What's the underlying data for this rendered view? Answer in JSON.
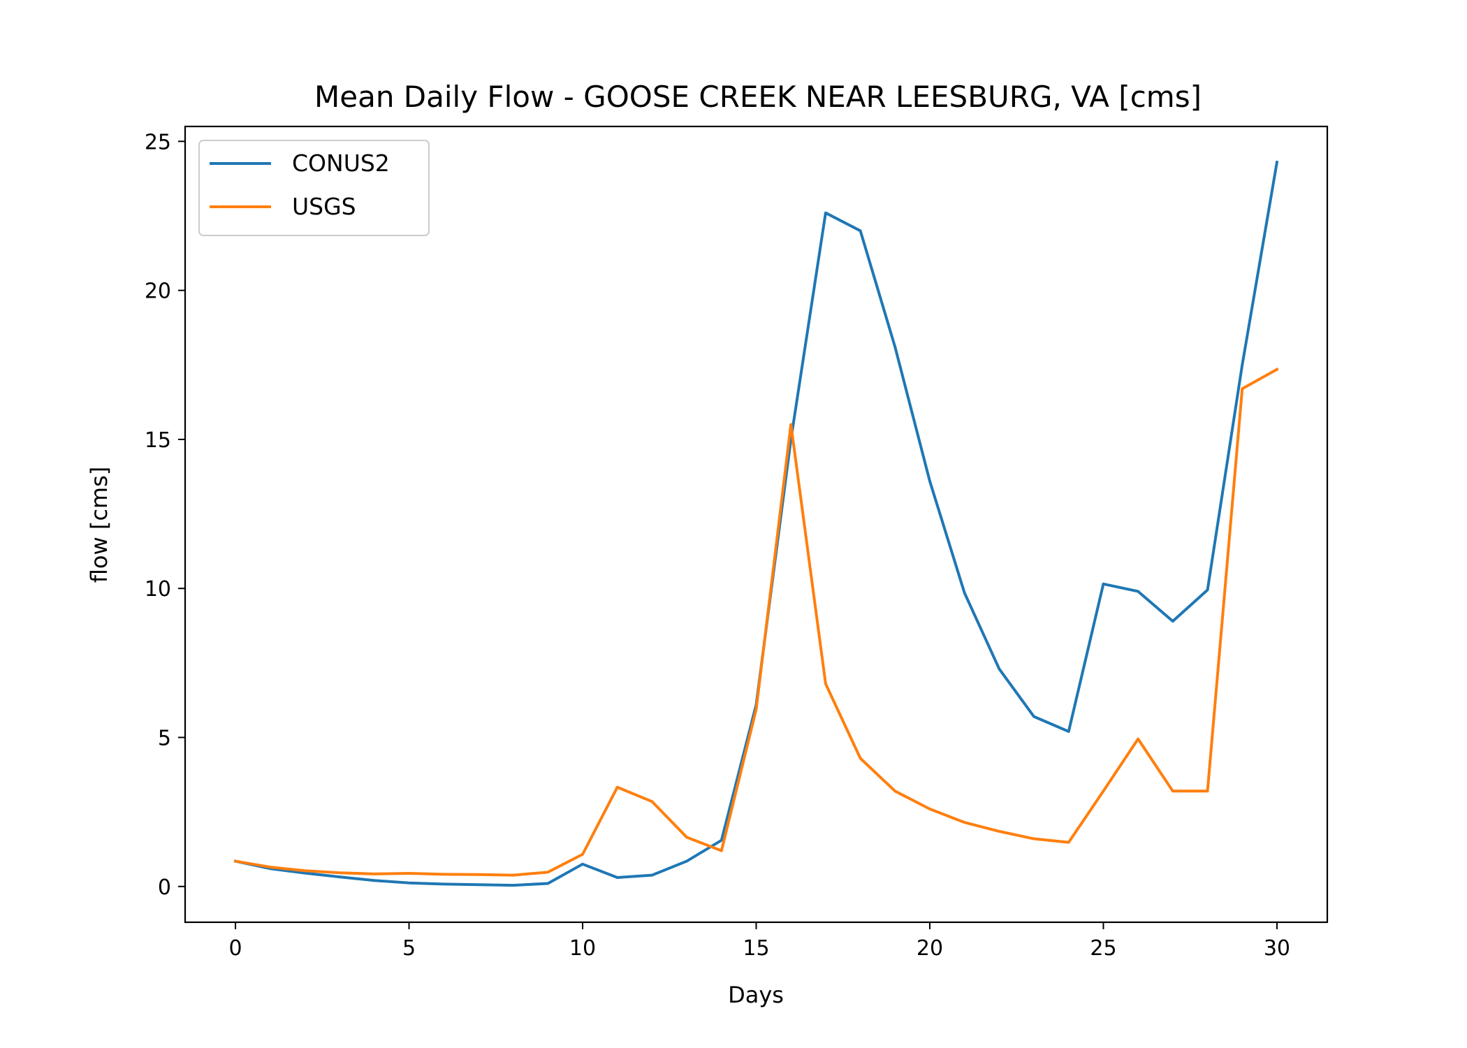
{
  "chart_data": {
    "type": "line",
    "title": "Mean Daily Flow - GOOSE CREEK NEAR LEESBURG, VA [cms]",
    "xlabel": "Days",
    "ylabel": "flow [cms]",
    "xlim": [
      -1.45,
      31.45
    ],
    "ylim": [
      -1.2,
      25.5
    ],
    "xticks": [
      0,
      5,
      10,
      15,
      20,
      25,
      30
    ],
    "yticks": [
      0,
      5,
      10,
      15,
      20,
      25
    ],
    "grid": false,
    "legend_position": "upper-left",
    "x": [
      0,
      1,
      2,
      3,
      4,
      5,
      6,
      7,
      8,
      9,
      10,
      11,
      12,
      13,
      14,
      15,
      16,
      17,
      18,
      19,
      20,
      21,
      22,
      23,
      24,
      25,
      26,
      27,
      28,
      29,
      30
    ],
    "series": [
      {
        "name": "CONUS2",
        "color": "#1f77b4",
        "values": [
          0.85,
          0.6,
          0.45,
          0.32,
          0.2,
          0.12,
          0.08,
          0.06,
          0.04,
          0.1,
          0.75,
          0.3,
          0.38,
          0.85,
          1.55,
          6.1,
          15.0,
          22.6,
          22.0,
          18.1,
          13.6,
          9.85,
          7.3,
          5.7,
          5.2,
          10.15,
          9.9,
          8.9,
          9.95,
          17.5,
          24.3
        ]
      },
      {
        "name": "USGS",
        "color": "#ff7f0e",
        "values": [
          0.85,
          0.65,
          0.53,
          0.46,
          0.42,
          0.44,
          0.41,
          0.4,
          0.38,
          0.48,
          1.08,
          3.33,
          2.85,
          1.65,
          1.2,
          5.95,
          15.5,
          6.8,
          4.3,
          3.2,
          2.6,
          2.15,
          1.85,
          1.6,
          1.48,
          3.2,
          4.95,
          3.2,
          3.2,
          16.7,
          17.35
        ]
      }
    ]
  }
}
